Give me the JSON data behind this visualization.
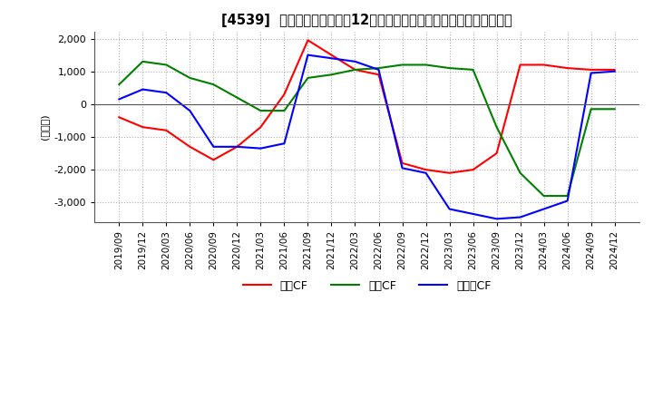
{
  "title": "[4539]  キャッシュフローの12か月移動合計の対前年同期増減額の推移",
  "ylabel": "(百万円)",
  "ylim": [
    -3600,
    2200
  ],
  "yticks": [
    -3000,
    -2000,
    -1000,
    0,
    1000,
    2000
  ],
  "dates": [
    "2019/09",
    "2019/12",
    "2020/03",
    "2020/06",
    "2020/09",
    "2020/12",
    "2021/03",
    "2021/06",
    "2021/09",
    "2021/12",
    "2022/03",
    "2022/06",
    "2022/09",
    "2022/12",
    "2023/03",
    "2023/06",
    "2023/09",
    "2023/12",
    "2024/03",
    "2024/06",
    "2024/09",
    "2024/12"
  ],
  "operating_cf": [
    -400,
    -700,
    -800,
    -1300,
    -1700,
    -1300,
    -700,
    300,
    1950,
    1500,
    1050,
    900,
    -1800,
    -2000,
    -2100,
    -2000,
    -1500,
    1200,
    1200,
    1100,
    1050,
    1050
  ],
  "investing_cf": [
    600,
    1300,
    1200,
    800,
    600,
    200,
    -200,
    -200,
    800,
    900,
    1050,
    1100,
    1200,
    1200,
    1100,
    1050,
    -700,
    -2100,
    -2800,
    -2800,
    -150,
    -150
  ],
  "free_cf": [
    150,
    450,
    350,
    -200,
    -1300,
    -1300,
    -1350,
    -1200,
    1500,
    1400,
    1300,
    1050,
    -1950,
    -2100,
    -3200,
    -3350,
    -3500,
    -3450,
    -3200,
    -2950,
    950,
    1000
  ],
  "operating_color": "#ff0000",
  "investing_color": "#008000",
  "free_color": "#0000ff",
  "background_color": "#ffffff",
  "grid_color": "#b0b0b0",
  "legend_labels": [
    "営業CF",
    "投資CF",
    "フリーCF"
  ]
}
